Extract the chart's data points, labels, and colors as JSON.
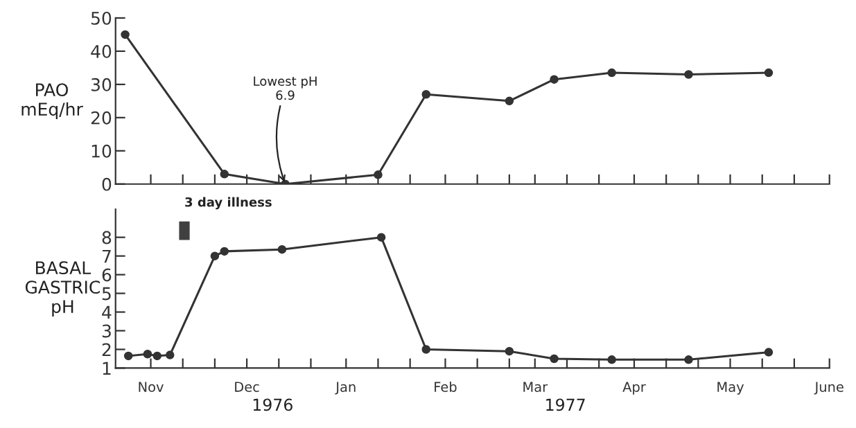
{
  "chart_data": [
    {
      "type": "line",
      "ylabel": "PAO\nmEq/hr",
      "tick_labels": "y",
      "marker": "circle",
      "line_style": "solid",
      "grid": false,
      "legend": false,
      "x": [
        "1976-10-24",
        "1976-11-24",
        "1976-12-13",
        "1977-01-11",
        "1977-01-26",
        "1977-02-21",
        "1977-03-07",
        "1977-03-25",
        "1977-04-18",
        "1977-05-13"
      ],
      "series": [
        {
          "color": "#333333",
          "values": [
            45,
            3,
            0,
            2.8,
            27,
            25,
            31.5,
            33.5,
            33,
            33.5
          ]
        }
      ],
      "xlim": [
        "1976-10-21",
        "1977-06-01"
      ],
      "xticks": [
        {
          "value": "1976-11-01",
          "label": null
        },
        {
          "value": "1976-11-11",
          "label": null
        },
        {
          "value": "1976-11-21",
          "label": null
        },
        {
          "value": "1976-12-01",
          "label": null
        },
        {
          "value": "1976-12-11",
          "label": null
        },
        {
          "value": "1976-12-21",
          "label": null
        },
        {
          "value": "1977-01-01",
          "label": null
        },
        {
          "value": "1977-01-11",
          "label": null
        },
        {
          "value": "1977-01-21",
          "label": null
        },
        {
          "value": "1977-02-01",
          "label": null
        },
        {
          "value": "1977-02-11",
          "label": null
        },
        {
          "value": "1977-02-21",
          "label": null
        },
        {
          "value": "1977-03-01",
          "label": null
        },
        {
          "value": "1977-03-11",
          "label": null
        },
        {
          "value": "1977-03-21",
          "label": null
        },
        {
          "value": "1977-04-01",
          "label": null
        },
        {
          "value": "1977-04-11",
          "label": null
        },
        {
          "value": "1977-04-21",
          "label": null
        },
        {
          "value": "1977-05-01",
          "label": null
        },
        {
          "value": "1977-05-11",
          "label": null
        },
        {
          "value": "1977-05-21",
          "label": null
        },
        {
          "value": "1977-06-01",
          "label": null
        }
      ],
      "ylim": [
        0,
        50
      ],
      "yticks": [
        0,
        10,
        20,
        30,
        40,
        50
      ],
      "annotations": [
        {
          "text": "Lowest pH\n6.9",
          "x": "1976-12-13",
          "y": 0
        }
      ]
    },
    {
      "type": "line",
      "ylabel": "BASAL\nGASTRIC\npH",
      "marker": "circle",
      "line_style": "solid",
      "grid": false,
      "legend": false,
      "x": [
        "1976-10-25",
        "1976-10-31",
        "1976-11-03",
        "1976-11-07",
        "1976-11-21",
        "1976-11-24",
        "1976-12-12",
        "1977-01-12",
        "1977-01-26",
        "1977-02-21",
        "1977-03-07",
        "1977-03-25",
        "1977-04-18",
        "1977-05-13"
      ],
      "series": [
        {
          "color": "#333333",
          "values": [
            1.65,
            1.75,
            1.65,
            1.7,
            7.0,
            7.25,
            7.35,
            8.0,
            2.0,
            1.9,
            1.5,
            1.45,
            1.45,
            1.85
          ]
        }
      ],
      "xlim": [
        "1976-10-21",
        "1977-06-01"
      ],
      "xticks": [
        {
          "value": "1976-11-01",
          "label": "Nov"
        },
        {
          "value": "1976-11-11",
          "label": null
        },
        {
          "value": "1976-11-21",
          "label": null
        },
        {
          "value": "1976-12-01",
          "label": "Dec"
        },
        {
          "value": "1976-12-11",
          "label": null
        },
        {
          "value": "1976-12-21",
          "label": null
        },
        {
          "value": "1977-01-01",
          "label": "Jan"
        },
        {
          "value": "1977-01-11",
          "label": null
        },
        {
          "value": "1977-01-21",
          "label": null
        },
        {
          "value": "1977-02-01",
          "label": "Feb"
        },
        {
          "value": "1977-02-11",
          "label": null
        },
        {
          "value": "1977-02-21",
          "label": null
        },
        {
          "value": "1977-03-01",
          "label": "Mar"
        },
        {
          "value": "1977-03-11",
          "label": null
        },
        {
          "value": "1977-03-21",
          "label": null
        },
        {
          "value": "1977-04-01",
          "label": "Apr"
        },
        {
          "value": "1977-04-11",
          "label": null
        },
        {
          "value": "1977-04-21",
          "label": null
        },
        {
          "value": "1977-05-01",
          "label": "May"
        },
        {
          "value": "1977-05-11",
          "label": null
        },
        {
          "value": "1977-05-21",
          "label": null
        },
        {
          "value": "1977-06-01",
          "label": "June"
        }
      ],
      "ylim": [
        1,
        9.5
      ],
      "yticks": [
        1,
        2,
        3,
        4,
        5,
        6,
        7,
        8
      ],
      "bands": [
        {
          "axis": "x",
          "from": "1976-11-10",
          "to": "1976-11-13",
          "label": "3 day illness",
          "color": "#404040"
        }
      ],
      "annotations": [
        "1976",
        "1977"
      ]
    }
  ]
}
